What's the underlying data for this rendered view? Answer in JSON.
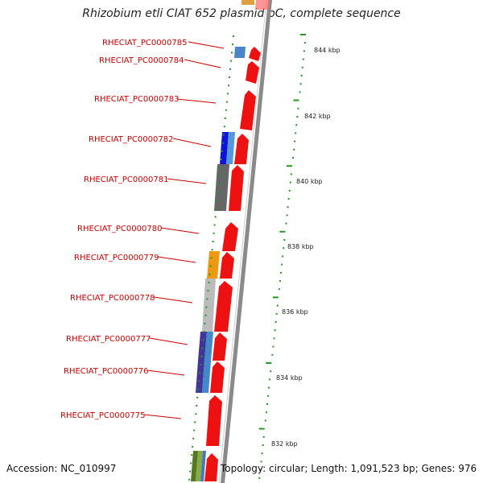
{
  "title": "Rhizobium etli CIAT 652 plasmid pC, complete sequence",
  "accession": "Accession: NC_010997",
  "summary": "Topology: circular; Length: 1,091,523 bp; Genes: 976",
  "gene_labels": [
    "RHECIAT_PC0000785",
    "RHECIAT_PC0000784",
    "RHECIAT_PC0000783",
    "RHECIAT_PC0000782",
    "RHECIAT_PC0000781",
    "RHECIAT_PC0000780",
    "RHECIAT_PC0000779",
    "RHECIAT_PC0000778",
    "RHECIAT_PC0000777",
    "RHECIAT_PC0000776",
    "RHECIAT_PC0000775"
  ],
  "kbp_labels": [
    "844 kbp",
    "842 kbp",
    "840 kbp",
    "838 kbp",
    "836 kbp",
    "834 kbp",
    "832 kbp"
  ],
  "colors": {
    "label_red": "#cc0000",
    "gene_red": "#ee1111",
    "backbone": "#8a8a8a",
    "tick_green": "#229922"
  }
}
